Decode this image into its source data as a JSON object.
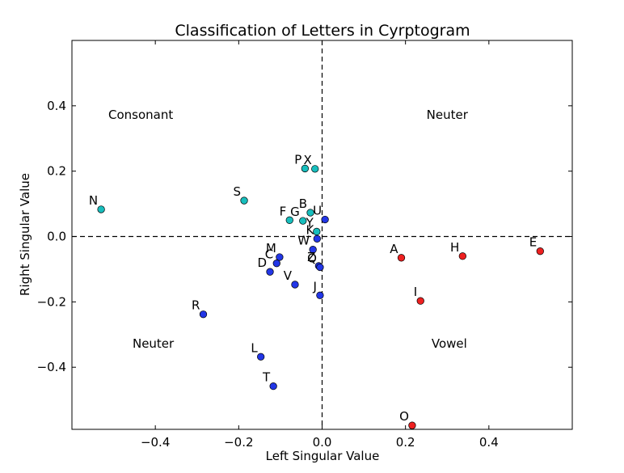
{
  "chart_data": {
    "type": "scatter",
    "title": "Classification of Letters in Cyrptogram",
    "xlabel": "Left Singular Value",
    "ylabel": "Right Singular Value",
    "xlim": [
      -0.6,
      0.6
    ],
    "ylim": [
      -0.59,
      0.6
    ],
    "xticks": [
      -0.4,
      -0.2,
      0.0,
      0.2,
      0.4
    ],
    "xtick_labels": [
      "−0.4",
      "−0.2",
      "0.0",
      "0.2",
      "0.4"
    ],
    "yticks": [
      0.4,
      0.2,
      0.0,
      -0.2,
      -0.4
    ],
    "ytick_labels": [
      "0.4",
      "0.2",
      "0.0",
      "−0.2",
      "−0.4"
    ],
    "grid": false,
    "reference_lines": "dashed lines at x=0 and y=0",
    "region_labels": [
      {
        "text": "Consonant",
        "x": -0.435,
        "y": 0.36
      },
      {
        "text": "Neuter",
        "x": 0.3,
        "y": 0.36
      },
      {
        "text": "Neuter",
        "x": -0.405,
        "y": -0.34
      },
      {
        "text": "Vowel",
        "x": 0.305,
        "y": -0.34
      }
    ],
    "colors": {
      "consonant": "#17bebd",
      "neuter": "#2236e6",
      "vowel": "#ee2020"
    },
    "points": [
      {
        "label": "N",
        "x": -0.53,
        "y": 0.083,
        "group": "consonant"
      },
      {
        "label": "S",
        "x": -0.187,
        "y": 0.11,
        "group": "consonant"
      },
      {
        "label": "P",
        "x": -0.041,
        "y": 0.208,
        "group": "consonant"
      },
      {
        "label": "X",
        "x": -0.017,
        "y": 0.207,
        "group": "consonant"
      },
      {
        "label": "F",
        "x": -0.078,
        "y": 0.05,
        "group": "consonant"
      },
      {
        "label": "G",
        "x": -0.046,
        "y": 0.048,
        "group": "consonant"
      },
      {
        "label": "B",
        "x": -0.028,
        "y": 0.073,
        "group": "consonant"
      },
      {
        "label": "Y",
        "x": -0.013,
        "y": 0.015,
        "group": "consonant"
      },
      {
        "label": "U",
        "x": 0.007,
        "y": 0.052,
        "group": "neuter"
      },
      {
        "label": "K",
        "x": -0.012,
        "y": -0.007,
        "group": "neuter"
      },
      {
        "label": "W",
        "x": -0.022,
        "y": -0.04,
        "group": "neuter"
      },
      {
        "label": "M",
        "x": -0.102,
        "y": -0.063,
        "group": "neuter"
      },
      {
        "label": "C",
        "x": -0.109,
        "y": -0.082,
        "group": "neuter"
      },
      {
        "label": "D",
        "x": -0.125,
        "y": -0.108,
        "group": "neuter"
      },
      {
        "label": "Z",
        "x": -0.008,
        "y": -0.09,
        "group": "neuter"
      },
      {
        "label": "Q",
        "x": -0.005,
        "y": -0.094,
        "group": "neuter"
      },
      {
        "label": "V",
        "x": -0.065,
        "y": -0.147,
        "group": "neuter"
      },
      {
        "label": "J",
        "x": -0.005,
        "y": -0.18,
        "group": "neuter"
      },
      {
        "label": "R",
        "x": -0.285,
        "y": -0.238,
        "group": "neuter"
      },
      {
        "label": "L",
        "x": -0.147,
        "y": -0.368,
        "group": "neuter"
      },
      {
        "label": "T",
        "x": -0.117,
        "y": -0.458,
        "group": "neuter"
      },
      {
        "label": "A",
        "x": 0.19,
        "y": -0.065,
        "group": "vowel"
      },
      {
        "label": "H",
        "x": 0.337,
        "y": -0.06,
        "group": "vowel"
      },
      {
        "label": "E",
        "x": 0.523,
        "y": -0.045,
        "group": "vowel"
      },
      {
        "label": "I",
        "x": 0.236,
        "y": -0.197,
        "group": "vowel"
      },
      {
        "label": "O",
        "x": 0.216,
        "y": -0.578,
        "group": "vowel"
      }
    ]
  }
}
